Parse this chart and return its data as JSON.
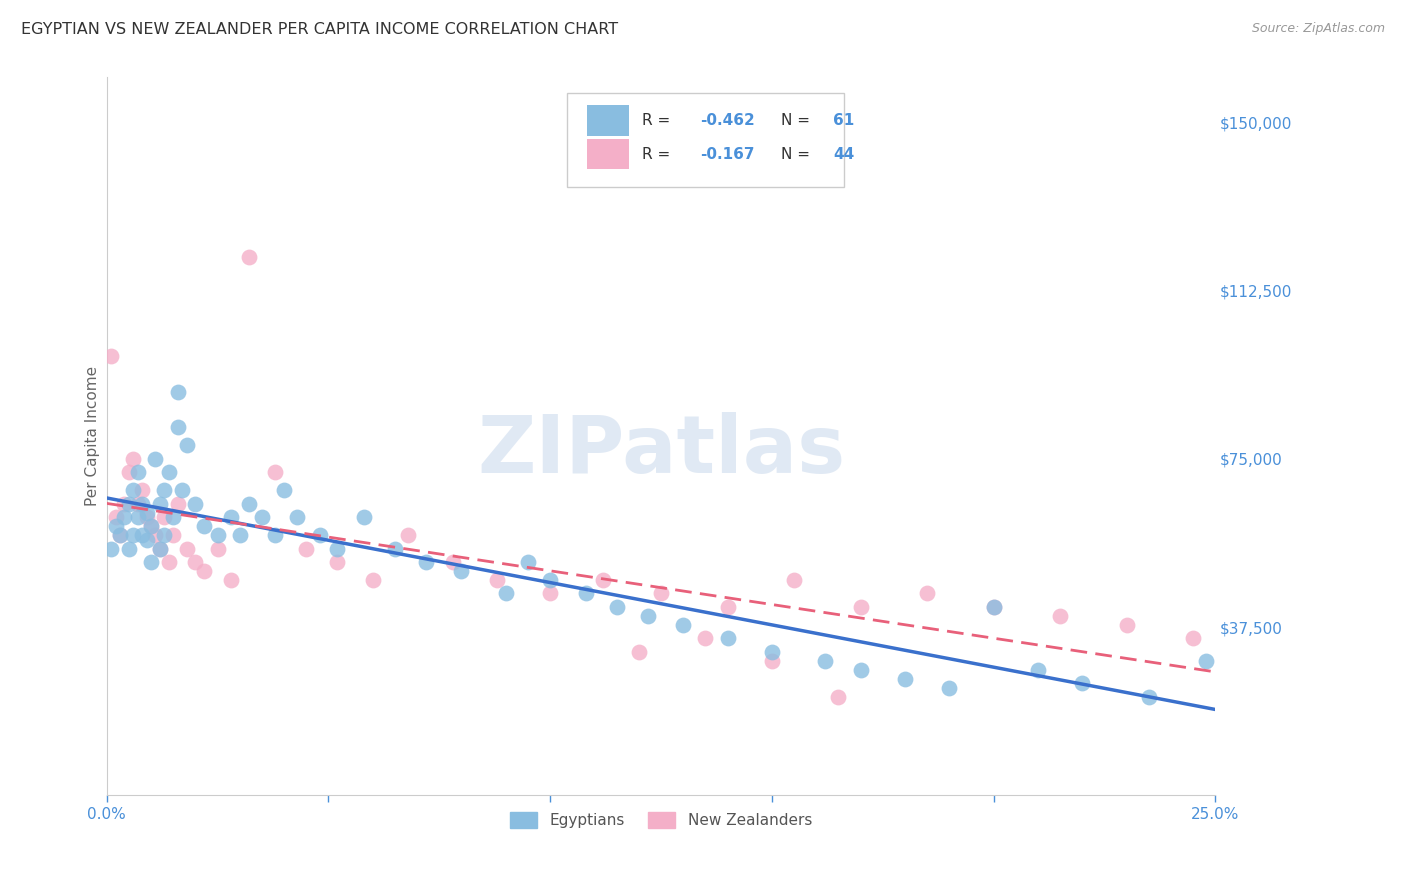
{
  "title": "EGYPTIAN VS NEW ZEALANDER PER CAPITA INCOME CORRELATION CHART",
  "source": "Source: ZipAtlas.com",
  "ylabel": "Per Capita Income",
  "xlim": [
    0.0,
    0.25
  ],
  "ylim": [
    0,
    160000
  ],
  "yticks": [
    37500,
    75000,
    112500,
    150000
  ],
  "ytick_labels": [
    "$37,500",
    "$75,000",
    "$112,500",
    "$150,000"
  ],
  "xticks": [
    0.0,
    0.05,
    0.1,
    0.15,
    0.2,
    0.25
  ],
  "xtick_labels": [
    "0.0%",
    "",
    "",
    "",
    "",
    "25.0%"
  ],
  "background_color": "#ffffff",
  "grid_color": "#cccccc",
  "watermark": "ZIPatlas",
  "blue_color": "#89bde0",
  "pink_color": "#f4afc8",
  "line_blue": "#3a70cc",
  "line_pink": "#e8607a",
  "title_color": "#333333",
  "axis_label_color": "#666666",
  "tick_color": "#4a90d9",
  "egyptians_x": [
    0.001,
    0.002,
    0.003,
    0.004,
    0.005,
    0.005,
    0.006,
    0.006,
    0.007,
    0.007,
    0.008,
    0.008,
    0.009,
    0.009,
    0.01,
    0.01,
    0.011,
    0.012,
    0.012,
    0.013,
    0.013,
    0.014,
    0.015,
    0.016,
    0.016,
    0.017,
    0.018,
    0.02,
    0.022,
    0.025,
    0.028,
    0.03,
    0.032,
    0.035,
    0.038,
    0.04,
    0.043,
    0.048,
    0.052,
    0.058,
    0.065,
    0.072,
    0.08,
    0.09,
    0.095,
    0.1,
    0.108,
    0.115,
    0.122,
    0.13,
    0.14,
    0.15,
    0.162,
    0.17,
    0.18,
    0.19,
    0.2,
    0.21,
    0.22,
    0.235,
    0.248
  ],
  "egyptians_y": [
    55000,
    60000,
    58000,
    62000,
    65000,
    55000,
    68000,
    58000,
    72000,
    62000,
    65000,
    58000,
    63000,
    57000,
    60000,
    52000,
    75000,
    65000,
    55000,
    68000,
    58000,
    72000,
    62000,
    90000,
    82000,
    68000,
    78000,
    65000,
    60000,
    58000,
    62000,
    58000,
    65000,
    62000,
    58000,
    68000,
    62000,
    58000,
    55000,
    62000,
    55000,
    52000,
    50000,
    45000,
    52000,
    48000,
    45000,
    42000,
    40000,
    38000,
    35000,
    32000,
    30000,
    28000,
    26000,
    24000,
    42000,
    28000,
    25000,
    22000,
    30000
  ],
  "nzlanders_x": [
    0.001,
    0.002,
    0.003,
    0.004,
    0.005,
    0.006,
    0.007,
    0.008,
    0.009,
    0.01,
    0.011,
    0.012,
    0.013,
    0.014,
    0.015,
    0.016,
    0.018,
    0.02,
    0.022,
    0.025,
    0.028,
    0.032,
    0.038,
    0.045,
    0.052,
    0.06,
    0.068,
    0.078,
    0.088,
    0.1,
    0.112,
    0.125,
    0.14,
    0.155,
    0.17,
    0.185,
    0.2,
    0.215,
    0.23,
    0.245,
    0.12,
    0.135,
    0.15,
    0.165
  ],
  "nzlanders_y": [
    98000,
    62000,
    58000,
    65000,
    72000,
    75000,
    65000,
    68000,
    62000,
    60000,
    58000,
    55000,
    62000,
    52000,
    58000,
    65000,
    55000,
    52000,
    50000,
    55000,
    48000,
    120000,
    72000,
    55000,
    52000,
    48000,
    58000,
    52000,
    48000,
    45000,
    48000,
    45000,
    42000,
    48000,
    42000,
    45000,
    42000,
    40000,
    38000,
    35000,
    32000,
    35000,
    30000,
    22000
  ]
}
